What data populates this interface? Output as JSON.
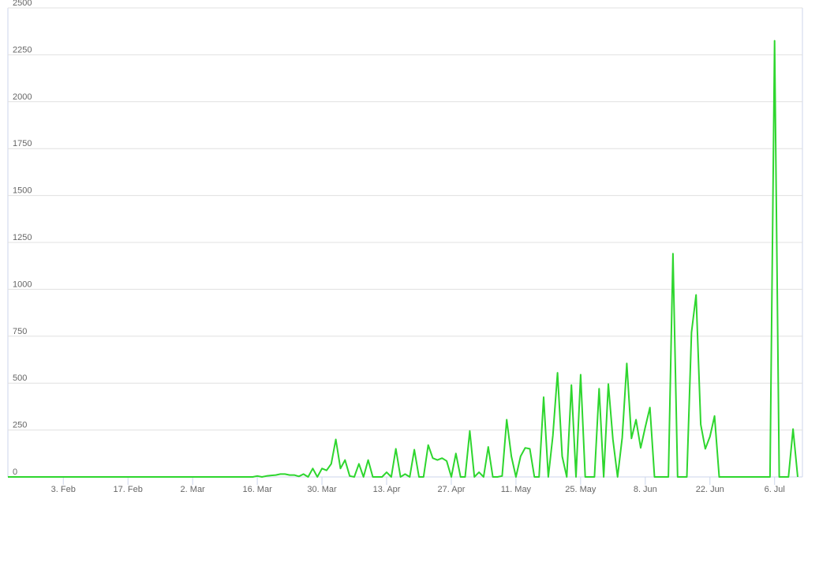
{
  "chart_data": {
    "type": "line",
    "categories": [
      null,
      null,
      null,
      null,
      null,
      null,
      null,
      null,
      null,
      null,
      null,
      null,
      "3. Feb",
      null,
      null,
      null,
      null,
      null,
      null,
      null,
      null,
      null,
      null,
      null,
      null,
      null,
      "17. Feb",
      null,
      null,
      null,
      null,
      null,
      null,
      null,
      null,
      null,
      null,
      null,
      null,
      null,
      "2. Mar",
      null,
      null,
      null,
      null,
      null,
      null,
      null,
      null,
      null,
      null,
      null,
      null,
      null,
      "16. Mar",
      null,
      null,
      null,
      null,
      null,
      null,
      null,
      null,
      null,
      null,
      null,
      null,
      null,
      "30. Mar",
      null,
      null,
      null,
      null,
      null,
      null,
      null,
      null,
      null,
      null,
      null,
      null,
      null,
      "13. Apr",
      null,
      null,
      null,
      null,
      null,
      null,
      null,
      null,
      null,
      null,
      null,
      null,
      null,
      "27. Apr",
      null,
      null,
      null,
      null,
      null,
      null,
      null,
      null,
      null,
      null,
      null,
      null,
      null,
      "11. May",
      null,
      null,
      null,
      null,
      null,
      null,
      null,
      null,
      null,
      null,
      null,
      null,
      null,
      "25. May",
      null,
      null,
      null,
      null,
      null,
      null,
      null,
      null,
      null,
      null,
      null,
      null,
      null,
      "8. Jun",
      null,
      null,
      null,
      null,
      null,
      null,
      null,
      null,
      null,
      null,
      null,
      null,
      null,
      "22. Jun",
      null,
      null,
      null,
      null,
      null,
      null,
      null,
      null,
      null,
      null,
      null,
      null,
      null,
      "6. Jul",
      null,
      null,
      null,
      null,
      null
    ],
    "values": [
      0,
      0,
      0,
      0,
      0,
      0,
      0,
      0,
      0,
      0,
      0,
      0,
      0,
      0,
      0,
      0,
      0,
      0,
      0,
      0,
      0,
      0,
      0,
      0,
      0,
      0,
      0,
      0,
      0,
      0,
      0,
      0,
      0,
      0,
      0,
      0,
      0,
      0,
      0,
      0,
      0,
      0,
      0,
      0,
      0,
      0,
      0,
      0,
      0,
      0,
      0,
      0,
      0,
      0,
      5,
      0,
      5,
      8,
      10,
      15,
      15,
      10,
      10,
      3,
      15,
      0,
      45,
      0,
      45,
      35,
      70,
      200,
      45,
      90,
      5,
      0,
      70,
      0,
      90,
      0,
      0,
      0,
      25,
      0,
      150,
      0,
      15,
      0,
      145,
      0,
      0,
      170,
      100,
      90,
      100,
      85,
      0,
      125,
      0,
      0,
      245,
      0,
      25,
      0,
      160,
      0,
      0,
      5,
      305,
      110,
      0,
      110,
      155,
      150,
      0,
      0,
      425,
      0,
      220,
      555,
      110,
      0,
      490,
      0,
      545,
      0,
      0,
      0,
      470,
      0,
      495,
      200,
      0,
      210,
      605,
      205,
      305,
      155,
      265,
      370,
      0,
      0,
      0,
      0,
      1190,
      0,
      0,
      0,
      770,
      970,
      280,
      150,
      215,
      325,
      0,
      0,
      0,
      0,
      0,
      0,
      0,
      0,
      0,
      0,
      0,
      0,
      2325,
      0,
      0,
      0,
      255,
      0
    ],
    "color": "#2ed62e",
    "ylim": [
      0,
      2500
    ],
    "yticks": [
      0,
      250,
      500,
      750,
      1000,
      1250,
      1500,
      1750,
      2000,
      2250,
      2500
    ],
    "grid": true
  }
}
